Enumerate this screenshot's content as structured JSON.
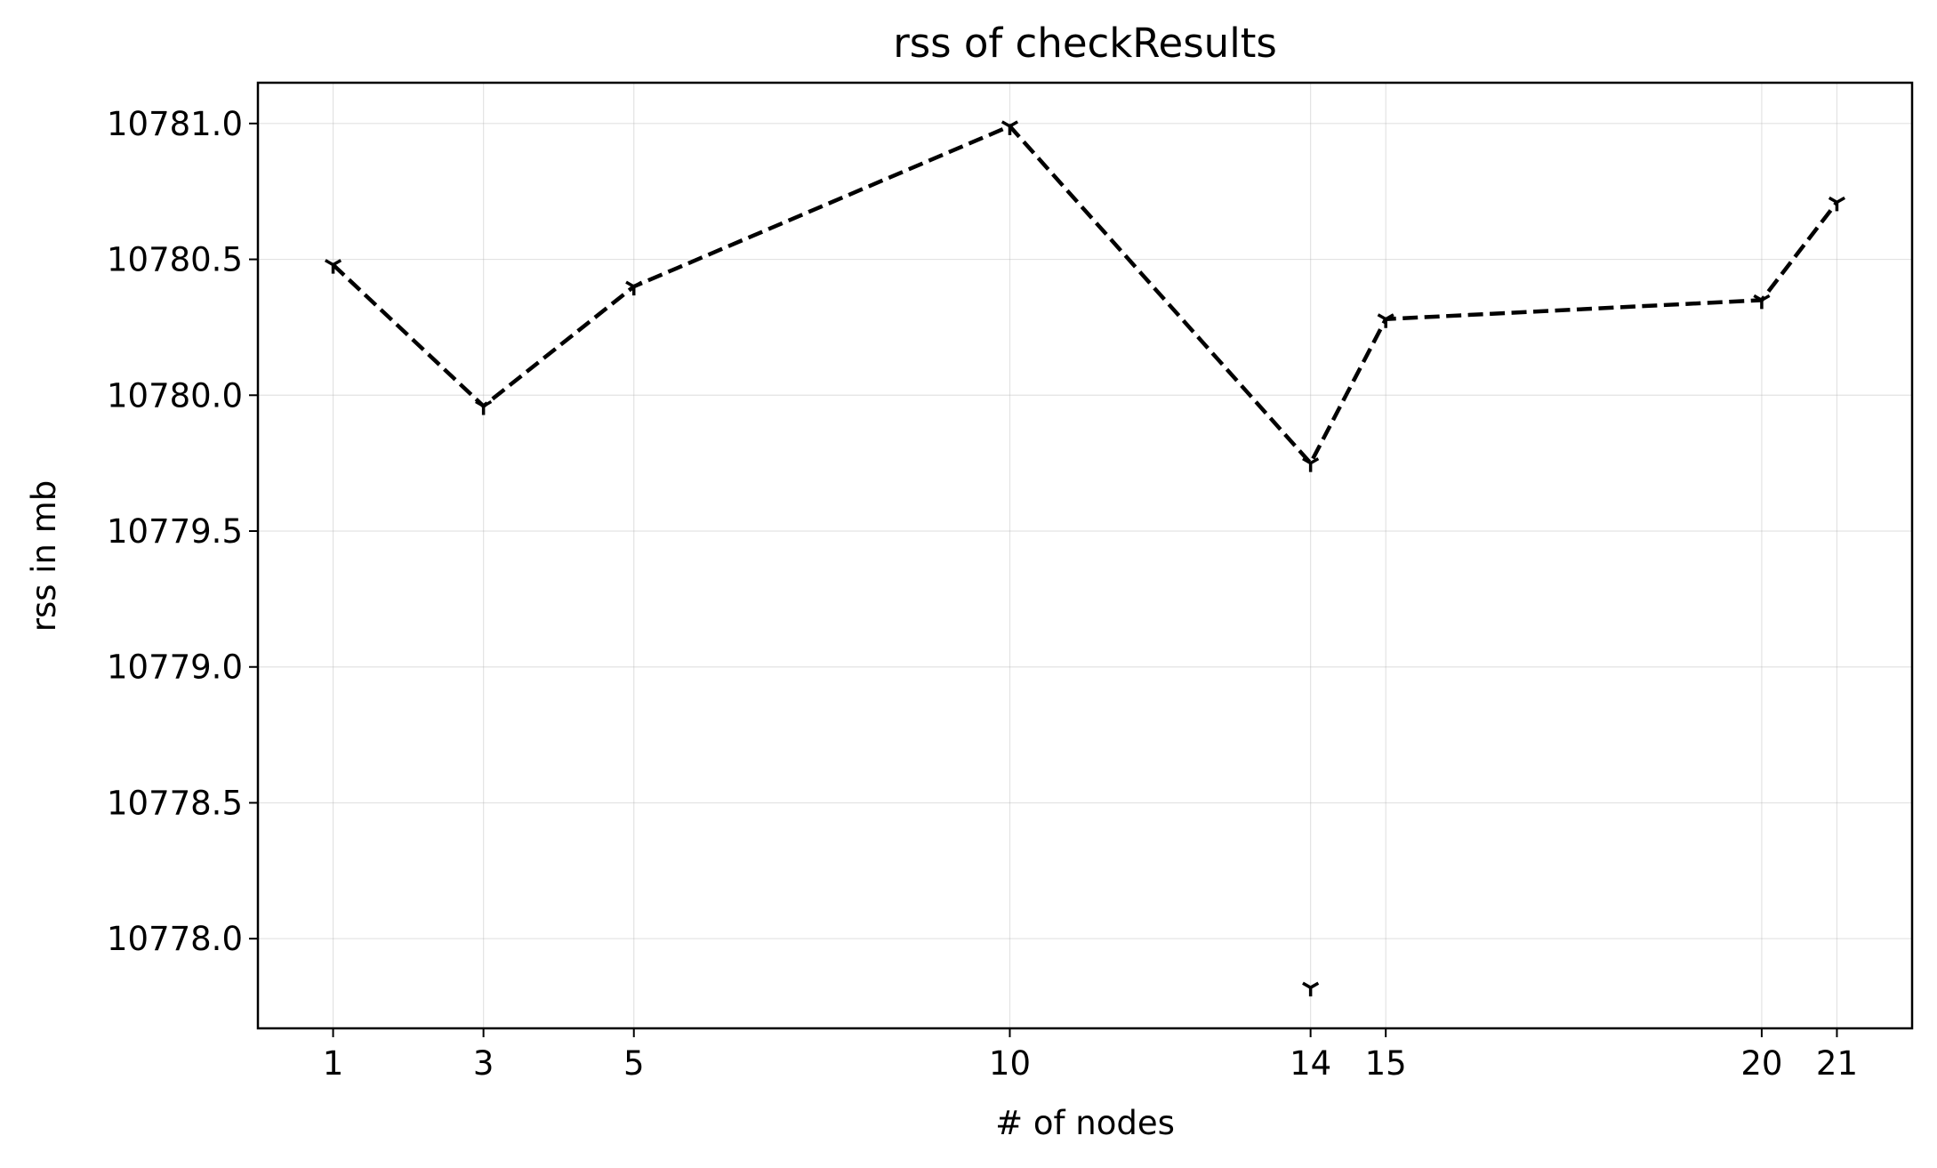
{
  "chart_data": {
    "type": "line",
    "title": "rss of checkResults",
    "xlabel": "# of nodes",
    "ylabel": "rss in mb",
    "xlim": [
      0,
      22
    ],
    "ylim": [
      10777.67,
      10781.15
    ],
    "xticks": [
      1,
      3,
      5,
      10,
      14,
      15,
      20,
      21
    ],
    "xtick_labels": [
      "1",
      "3",
      "5",
      "10",
      "14",
      "15",
      "20",
      "21"
    ],
    "yticks": [
      10778.0,
      10778.5,
      10779.0,
      10779.5,
      10780.0,
      10780.5,
      10781.0
    ],
    "ytick_labels": [
      "10778.0",
      "10778.5",
      "10779.0",
      "10779.5",
      "10780.0",
      "10780.5",
      "10781.0"
    ],
    "grid": true,
    "series": [
      {
        "line_style": "dashed",
        "marker": "tri_down",
        "color": "#000000",
        "x": [
          1,
          3,
          5,
          10,
          14,
          15,
          20,
          21
        ],
        "y": [
          10780.48,
          10779.96,
          10780.4,
          10780.99,
          10779.75,
          10780.28,
          10780.35,
          10780.71
        ]
      },
      {
        "line_style": "none",
        "marker": "tri_down",
        "color": "#000000",
        "x": [
          14
        ],
        "y": [
          10777.82
        ]
      }
    ]
  }
}
